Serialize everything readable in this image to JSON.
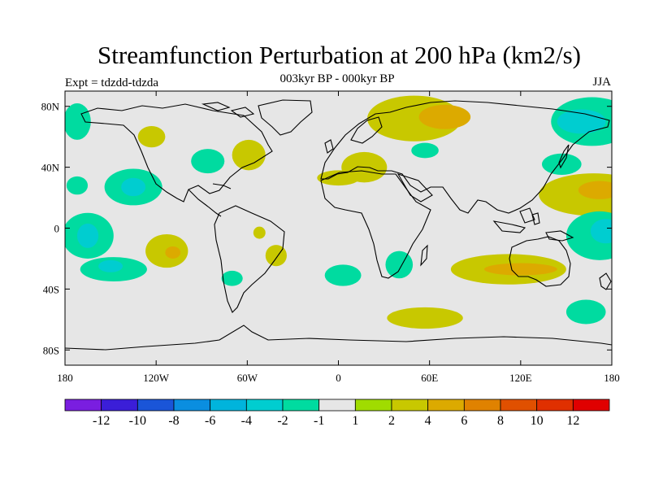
{
  "title": "Streamfunction Perturbation at 200 hPa (km2/s)",
  "subtitle": "003kyr BP - 000kyr BP",
  "experiment_label": "Expt = tdzdd-tdzda",
  "season": "JJA",
  "chart_data": {
    "type": "heatmap",
    "projection": "cylindrical equidistant",
    "variable": "Streamfunction perturbation",
    "units": "km2/s",
    "level": "200 hPa",
    "x_range": [
      -180,
      180
    ],
    "y_range": [
      -90,
      90
    ],
    "x_ticks": [
      {
        "value": -180,
        "label": "180"
      },
      {
        "value": -120,
        "label": "120W"
      },
      {
        "value": -60,
        "label": "60W"
      },
      {
        "value": 0,
        "label": "0"
      },
      {
        "value": 60,
        "label": "60E"
      },
      {
        "value": 120,
        "label": "120E"
      },
      {
        "value": 180,
        "label": "180"
      }
    ],
    "y_ticks": [
      {
        "value": 80,
        "label": "80N"
      },
      {
        "value": 40,
        "label": "40N"
      },
      {
        "value": 0,
        "label": "0"
      },
      {
        "value": -40,
        "label": "40S"
      },
      {
        "value": -80,
        "label": "80S"
      }
    ],
    "colorbar": {
      "labels": [
        "-12",
        "-10",
        "-8",
        "-6",
        "-4",
        "-2",
        "-1",
        "1",
        "2",
        "4",
        "6",
        "8",
        "10",
        "12"
      ],
      "colors": [
        "#7a1ee0",
        "#3b1ed8",
        "#1a55d8",
        "#0a8ee0",
        "#00b4dc",
        "#00cdd0",
        "#00dba0",
        "#e6e6e6",
        "#a0dc00",
        "#c8c800",
        "#dcaa00",
        "#e08200",
        "#e05000",
        "#e03000",
        "#e00000"
      ]
    },
    "anomalies": [
      {
        "lon": -165,
        "lat": -5,
        "rlon": 17,
        "rlat": 15,
        "value": -2
      },
      {
        "lon": -148,
        "lat": -27,
        "rlon": 22,
        "rlat": 8,
        "value": -2
      },
      {
        "lon": -165,
        "lat": -5,
        "rlon": 7,
        "rlat": 8,
        "value": -4
      },
      {
        "lon": -150,
        "lat": -25,
        "rlon": 8,
        "rlat": 4,
        "value": -4
      },
      {
        "lon": -135,
        "lat": 27,
        "rlon": 19,
        "rlat": 12,
        "value": -2
      },
      {
        "lon": -135,
        "lat": 27,
        "rlon": 8,
        "rlat": 6,
        "value": -4
      },
      {
        "lon": -172,
        "lat": 28,
        "rlon": 7,
        "rlat": 6,
        "value": -2
      },
      {
        "lon": -172,
        "lat": 70,
        "rlon": 9,
        "rlat": 12,
        "value": -2
      },
      {
        "lon": -113,
        "lat": -15,
        "rlon": 14,
        "rlat": 11,
        "value": 2
      },
      {
        "lon": -109,
        "lat": -16,
        "rlon": 5,
        "rlat": 4,
        "value": 4
      },
      {
        "lon": -123,
        "lat": 60,
        "rlon": 9,
        "rlat": 7,
        "value": 2
      },
      {
        "lon": -86,
        "lat": 44,
        "rlon": 11,
        "rlat": 8,
        "value": -2
      },
      {
        "lon": -59,
        "lat": 48,
        "rlon": 11,
        "rlat": 10,
        "value": 2
      },
      {
        "lon": -70,
        "lat": -33,
        "rlon": 7,
        "rlat": 5,
        "value": -2
      },
      {
        "lon": -52,
        "lat": -3,
        "rlon": 4,
        "rlat": 4,
        "value": 2
      },
      {
        "lon": -41,
        "lat": -18,
        "rlon": 7,
        "rlat": 7,
        "value": 2
      },
      {
        "lon": 3,
        "lat": -31,
        "rlon": 12,
        "rlat": 7,
        "value": -2
      },
      {
        "lon": 17,
        "lat": 40,
        "rlon": 15,
        "rlat": 10,
        "value": 2
      },
      {
        "lon": 0,
        "lat": 33,
        "rlon": 14,
        "rlat": 5,
        "value": 2
      },
      {
        "lon": 57,
        "lat": 51,
        "rlon": 9,
        "rlat": 5,
        "value": -2
      },
      {
        "lon": 50,
        "lat": 72,
        "rlon": 31,
        "rlat": 15,
        "value": 2
      },
      {
        "lon": 70,
        "lat": 73,
        "rlon": 17,
        "rlat": 8,
        "value": 4
      },
      {
        "lon": 40,
        "lat": -24,
        "rlon": 9,
        "rlat": 9,
        "value": -2
      },
      {
        "lon": 57,
        "lat": -59,
        "rlon": 25,
        "rlat": 7,
        "value": 2
      },
      {
        "lon": 112,
        "lat": -27,
        "rlon": 38,
        "rlat": 10,
        "value": 2
      },
      {
        "lon": 120,
        "lat": -27,
        "rlon": 24,
        "rlat": 4,
        "value": 4
      },
      {
        "lon": 147,
        "lat": 42,
        "rlon": 13,
        "rlat": 7,
        "value": -2
      },
      {
        "lon": 167,
        "lat": 70,
        "rlon": 27,
        "rlat": 16,
        "value": -2
      },
      {
        "lon": 160,
        "lat": 70,
        "rlon": 16,
        "rlat": 8,
        "value": -4
      },
      {
        "lon": 168,
        "lat": 22,
        "rlon": 36,
        "rlat": 14,
        "value": 2
      },
      {
        "lon": 172,
        "lat": 25,
        "rlon": 14,
        "rlat": 6,
        "value": 4
      },
      {
        "lon": 172,
        "lat": -5,
        "rlon": 22,
        "rlat": 16,
        "value": -2
      },
      {
        "lon": 176,
        "lat": -2,
        "rlon": 10,
        "rlat": 8,
        "value": -4
      },
      {
        "lon": 163,
        "lat": -55,
        "rlon": 13,
        "rlat": 8,
        "value": -2
      }
    ]
  }
}
